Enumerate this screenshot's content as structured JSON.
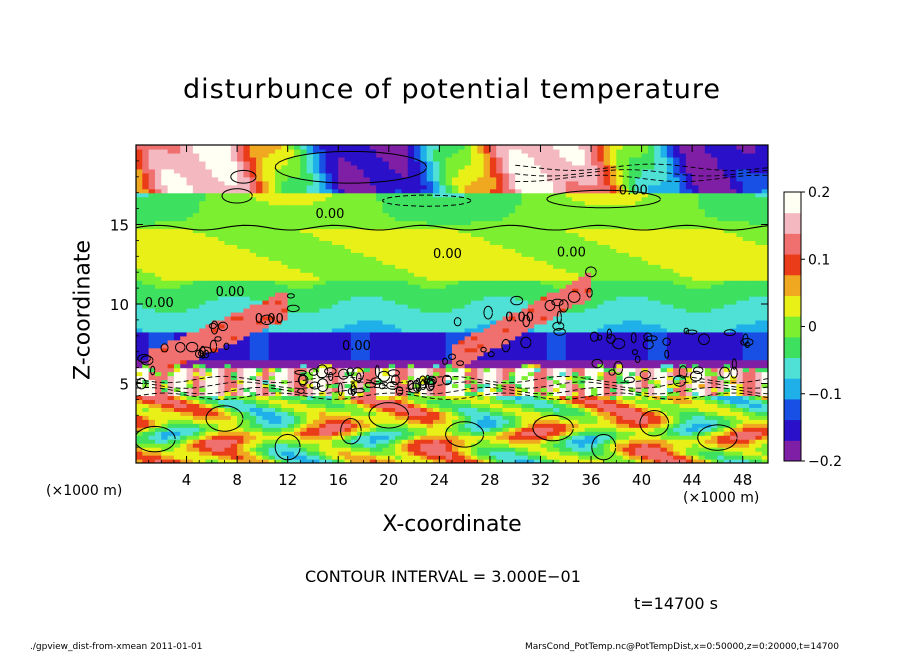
{
  "chart_data": {
    "type": "heatmap",
    "title": "disturbunce of potential temperature",
    "xlabel": "X-coordinate",
    "ylabel": "Z-coordinate",
    "x_unit_left": "(×1000 m)",
    "x_unit_right": "(×1000 m)",
    "xlim": [
      0,
      50
    ],
    "ylim": [
      0,
      20
    ],
    "x_ticks": [
      4,
      8,
      12,
      16,
      20,
      24,
      28,
      32,
      36,
      40,
      44,
      48
    ],
    "x_tick_labels": [
      "4",
      "8",
      "12",
      "16",
      "20",
      "24",
      "28",
      "32",
      "36",
      "40",
      "44",
      "48"
    ],
    "y_ticks": [
      5,
      10,
      15
    ],
    "y_tick_labels": [
      "5",
      "10",
      "15"
    ],
    "colorbar": {
      "range": [
        -0.2,
        0.2
      ],
      "ticks": [
        0.2,
        0.1,
        0,
        -0.1,
        -0.2
      ],
      "tick_labels": [
        "0.2",
        "0.1",
        "0",
        "−0.1",
        "−0.2"
      ],
      "colors": [
        "#7f1fa5",
        "#2a10c8",
        "#1850e6",
        "#1fb0ea",
        "#4fe0d6",
        "#3ee060",
        "#7cf030",
        "#e8f018",
        "#f0a820",
        "#ea3c18",
        "#f07070",
        "#f4b8c0",
        "#fffff4"
      ]
    },
    "contour_labels": [
      "0.00",
      "0.00",
      "0.00",
      "0.00",
      "0.00",
      "0.00",
      "0.00",
      "0.00",
      "0.00",
      "0.00"
    ],
    "bands": [
      {
        "z": [
          0,
          4
        ],
        "value": 0.05,
        "note": "mixed"
      },
      {
        "z": [
          4,
          6
        ],
        "value": 0.1
      },
      {
        "z": [
          6,
          8
        ],
        "value": -0.15
      },
      {
        "z": [
          8,
          11
        ],
        "value": -0.07
      },
      {
        "z": [
          11,
          14.5
        ],
        "value": 0.02
      },
      {
        "z": [
          14.5,
          17
        ],
        "value": 0.0
      },
      {
        "z": [
          17,
          20
        ],
        "value": 0.15
      }
    ]
  },
  "annotations": {
    "contour_interval": "CONTOUR INTERVAL = 3.000E−01",
    "time": "t=14700 s",
    "footer_left": "./gpview_dist-from-xmean  2011-01-01",
    "footer_right": "MarsCond_PotTemp.nc@PotTempDist,x=0:50000,z=0:20000,t=14700"
  }
}
